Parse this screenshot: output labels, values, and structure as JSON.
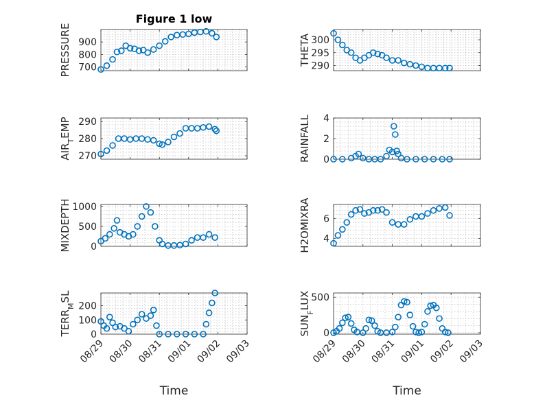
{
  "figure": {
    "title": "Figure 1 low",
    "time_label": "Time",
    "marker_color": "#0072BD",
    "time_ticks": [
      "08/29",
      "08/30",
      "08/31",
      "09/01",
      "09/02",
      "09/03"
    ]
  },
  "chart_data": [
    {
      "id": "pressure",
      "type": "scatter",
      "marker": "circle",
      "ylabel": "PRESSURE",
      "title": "Figure 1 low",
      "xlim": [
        "08/29",
        "09/03"
      ],
      "ylim": [
        670,
        1000
      ],
      "yticks": [
        700,
        800,
        900
      ],
      "grid": true,
      "x_days_from": "08/29",
      "x": [
        0.0,
        0.2,
        0.4,
        0.55,
        0.7,
        0.85,
        1.0,
        1.15,
        1.3,
        1.45,
        1.6,
        1.8,
        2.0,
        2.2,
        2.4,
        2.6,
        2.8,
        3.0,
        3.2,
        3.4,
        3.6,
        3.8,
        3.95
      ],
      "y": [
        680,
        710,
        760,
        820,
        830,
        870,
        850,
        845,
        830,
        835,
        815,
        840,
        870,
        905,
        940,
        955,
        960,
        965,
        975,
        980,
        985,
        970,
        940
      ]
    },
    {
      "id": "theta",
      "type": "scatter",
      "marker": "circle",
      "ylabel": "THETA",
      "xlim": [
        "08/29",
        "09/03"
      ],
      "ylim": [
        288,
        304
      ],
      "yticks": [
        290,
        295,
        300
      ],
      "grid": true,
      "x": [
        0.0,
        0.15,
        0.3,
        0.45,
        0.6,
        0.75,
        0.9,
        1.05,
        1.2,
        1.35,
        1.5,
        1.65,
        1.8,
        2.0,
        2.2,
        2.4,
        2.6,
        2.8,
        3.0,
        3.2,
        3.4,
        3.6,
        3.8,
        3.95
      ],
      "y": [
        302.5,
        300,
        298,
        296,
        295,
        293,
        292,
        293,
        294,
        295,
        294.5,
        294,
        293,
        292,
        292,
        291,
        290.5,
        290,
        289.5,
        289,
        289,
        289,
        289,
        289
      ]
    },
    {
      "id": "airtemp",
      "type": "scatter",
      "marker": "circle",
      "ylabel": "AIR_TEMP",
      "ylabel_main": "AIR",
      "ylabel_sub": "T",
      "ylabel_rest": "EMP",
      "xlim": [
        "08/29",
        "09/03"
      ],
      "ylim": [
        268,
        292
      ],
      "yticks": [
        270,
        280,
        290
      ],
      "grid": true,
      "x": [
        0.0,
        0.2,
        0.4,
        0.6,
        0.8,
        1.0,
        1.2,
        1.4,
        1.6,
        1.8,
        2.0,
        2.1,
        2.3,
        2.5,
        2.7,
        2.9,
        3.1,
        3.3,
        3.5,
        3.7,
        3.9,
        3.95
      ],
      "y": [
        271,
        273,
        276,
        280,
        280,
        279.5,
        280,
        280,
        279.5,
        279,
        277,
        276.5,
        278,
        281,
        283,
        286,
        286,
        286,
        286.5,
        287,
        285.5,
        284.5
      ]
    },
    {
      "id": "rainfall",
      "type": "scatter",
      "marker": "circle",
      "ylabel": "RAINFALL",
      "xlim": [
        "08/29",
        "09/03"
      ],
      "ylim": [
        0,
        4
      ],
      "yticks": [
        0,
        2,
        4
      ],
      "grid": true,
      "x": [
        0.0,
        0.3,
        0.6,
        0.75,
        0.85,
        1.0,
        1.2,
        1.4,
        1.6,
        1.8,
        1.9,
        2.0,
        2.05,
        2.1,
        2.15,
        2.2,
        2.3,
        2.5,
        2.8,
        3.1,
        3.4,
        3.7,
        3.95
      ],
      "y": [
        0,
        0,
        0.1,
        0.3,
        0.5,
        0.1,
        0,
        0,
        0,
        0.3,
        0.9,
        0.7,
        3.2,
        2.4,
        0.8,
        0.5,
        0.1,
        0,
        0,
        0,
        0,
        0,
        0
      ]
    },
    {
      "id": "mixdepth",
      "type": "scatter",
      "marker": "circle",
      "ylabel": "MIXDEPTH",
      "xlim": [
        "08/29",
        "09/03"
      ],
      "ylim": [
        0,
        1050
      ],
      "yticks": [
        0,
        500,
        1000
      ],
      "grid": true,
      "x": [
        0.0,
        0.15,
        0.3,
        0.45,
        0.55,
        0.65,
        0.8,
        0.95,
        1.1,
        1.25,
        1.4,
        1.55,
        1.7,
        1.85,
        2.0,
        2.1,
        2.3,
        2.5,
        2.7,
        2.9,
        3.1,
        3.3,
        3.5,
        3.7,
        3.9
      ],
      "y": [
        130,
        200,
        300,
        450,
        650,
        350,
        300,
        250,
        300,
        500,
        750,
        1000,
        850,
        500,
        150,
        60,
        20,
        20,
        30,
        60,
        150,
        220,
        220,
        300,
        220
      ]
    },
    {
      "id": "h2omixra",
      "type": "scatter",
      "marker": "circle",
      "ylabel": "H2OMIXRA",
      "xlim": [
        "08/29",
        "09/03"
      ],
      "ylim": [
        3.2,
        7.4
      ],
      "yticks": [
        4,
        6
      ],
      "grid": true,
      "x": [
        0.0,
        0.15,
        0.3,
        0.45,
        0.6,
        0.75,
        0.9,
        1.05,
        1.2,
        1.35,
        1.5,
        1.65,
        1.8,
        2.0,
        2.2,
        2.4,
        2.6,
        2.8,
        3.0,
        3.2,
        3.4,
        3.6,
        3.8,
        3.95
      ],
      "y": [
        3.5,
        4.3,
        4.9,
        5.6,
        6.4,
        6.8,
        6.9,
        6.5,
        6.6,
        6.8,
        6.8,
        6.9,
        6.6,
        5.6,
        5.4,
        5.4,
        5.9,
        6.2,
        6.2,
        6.5,
        6.8,
        7.0,
        7.1,
        6.3
      ]
    },
    {
      "id": "terrmsl",
      "type": "scatter",
      "marker": "circle",
      "ylabel": "TERR_MSL",
      "ylabel_main": "TERR",
      "ylabel_sub": "M",
      "ylabel_rest": "SL",
      "xlim": [
        "08/29",
        "09/03"
      ],
      "ylim": [
        0,
        290
      ],
      "yticks": [
        0,
        100,
        200
      ],
      "grid": true,
      "x": [
        0.0,
        0.1,
        0.2,
        0.3,
        0.4,
        0.5,
        0.65,
        0.8,
        0.95,
        1.1,
        1.25,
        1.4,
        1.55,
        1.7,
        1.8,
        1.9,
        2.0,
        2.3,
        2.6,
        2.9,
        3.2,
        3.5,
        3.6,
        3.7,
        3.8,
        3.9
      ],
      "y": [
        90,
        60,
        40,
        120,
        80,
        50,
        55,
        40,
        20,
        70,
        100,
        140,
        110,
        130,
        170,
        60,
        0,
        0,
        0,
        0,
        0,
        0,
        70,
        150,
        220,
        290
      ]
    },
    {
      "id": "sunflux",
      "type": "scatter",
      "marker": "circle",
      "ylabel": "SUN_FLUX",
      "ylabel_main": "SUN",
      "ylabel_sub": "F",
      "ylabel_rest": "LUX",
      "xlim": [
        "08/29",
        "09/03"
      ],
      "ylim": [
        -20,
        560
      ],
      "yticks": [
        0,
        500
      ],
      "grid": true,
      "x": [
        0.0,
        0.1,
        0.2,
        0.3,
        0.4,
        0.5,
        0.6,
        0.7,
        0.8,
        1.0,
        1.1,
        1.2,
        1.3,
        1.4,
        1.5,
        1.6,
        1.8,
        2.0,
        2.1,
        2.2,
        2.3,
        2.4,
        2.5,
        2.6,
        2.7,
        2.8,
        2.9,
        3.0,
        3.1,
        3.2,
        3.3,
        3.4,
        3.5,
        3.6,
        3.7,
        3.8,
        3.9
      ],
      "y": [
        0,
        20,
        60,
        140,
        210,
        220,
        130,
        40,
        10,
        0,
        60,
        180,
        170,
        100,
        20,
        0,
        0,
        10,
        80,
        220,
        390,
        440,
        430,
        250,
        90,
        10,
        0,
        10,
        120,
        300,
        380,
        390,
        350,
        200,
        60,
        10,
        0
      ]
    }
  ]
}
